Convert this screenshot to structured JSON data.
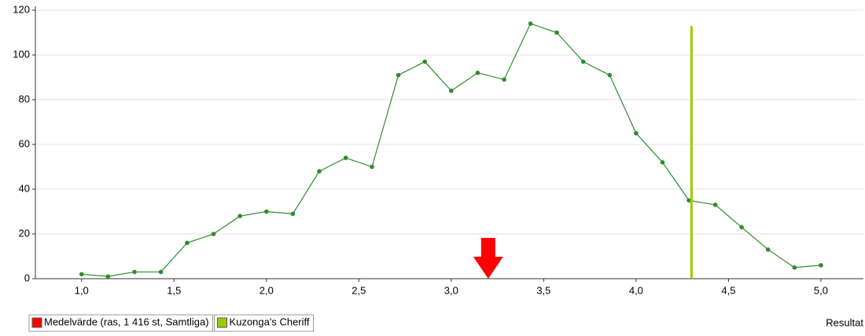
{
  "chart_data": {
    "type": "line",
    "x_label": "Resultat",
    "x": [
      1,
      1.143,
      1.286,
      1.429,
      1.571,
      1.714,
      1.857,
      2,
      2.143,
      2.286,
      2.429,
      2.571,
      2.714,
      2.857,
      3,
      3.143,
      3.286,
      3.429,
      3.571,
      3.714,
      3.857,
      4,
      4.143,
      4.286,
      4.429,
      4.571,
      4.714,
      4.857,
      5
    ],
    "series": [
      {
        "color": "#2e8b2e",
        "values": [
          2,
          1,
          3,
          3,
          16,
          20,
          28,
          30,
          29,
          48,
          54,
          50,
          91,
          97,
          84,
          92,
          89,
          114,
          110,
          97,
          91,
          65,
          52,
          35,
          33,
          23,
          13,
          5,
          6
        ]
      }
    ],
    "xlim": [
      0.75,
      5.23
    ],
    "ylim": [
      0,
      120
    ],
    "xticks": [
      {
        "value": 1,
        "label": "1,0"
      },
      {
        "value": 1.5,
        "label": "1,5"
      },
      {
        "value": 2,
        "label": "2,0"
      },
      {
        "value": 2.5,
        "label": "2,5"
      },
      {
        "value": 3,
        "label": "3,0"
      },
      {
        "value": 3.5,
        "label": "3,5"
      },
      {
        "value": 4,
        "label": "4,0"
      },
      {
        "value": 4.5,
        "label": "4,5"
      },
      {
        "value": 5,
        "label": "5,0"
      }
    ],
    "yticks": [
      0,
      20,
      40,
      60,
      80,
      100,
      120
    ],
    "grid": true,
    "markers": [
      {
        "kind": "arrow",
        "name": "Medelvärde (ras, 1 416 st, Samtliga)",
        "color": "#ff0000",
        "x": 3.2
      },
      {
        "kind": "vline",
        "name": "Kuzonga's Cheriff",
        "color": "#99cc00",
        "x": 4.3,
        "y": 113
      }
    ]
  }
}
